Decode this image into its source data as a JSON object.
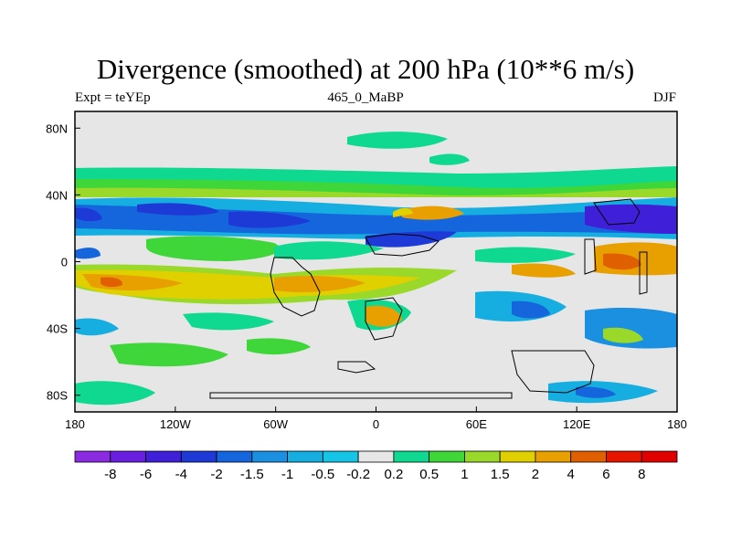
{
  "chart_data": {
    "type": "contour-map",
    "title": "Divergence (smoothed) at 200 hPa (10**6 m/s)",
    "left_label": "Expt = teYEp",
    "center_label": "465_0_MaBP",
    "right_label": "DJF",
    "x_ticks": [
      "180",
      "120W",
      "60W",
      "0",
      "60E",
      "120E",
      "180"
    ],
    "y_ticks": [
      "80N",
      "40N",
      "0",
      "40S",
      "80S"
    ],
    "xlim": [
      -180,
      180
    ],
    "ylim": [
      -90,
      90
    ],
    "colorbar_levels": [
      "-8",
      "-6",
      "-4",
      "-2",
      "-1.5",
      "-1",
      "-0.5",
      "-0.2",
      "0.2",
      "0.5",
      "1",
      "1.5",
      "2",
      "4",
      "6",
      "8"
    ],
    "colorbar_colors": [
      "#8a2be2",
      "#6a1fe0",
      "#3f1fd8",
      "#1d39d6",
      "#1566dd",
      "#1b8fe0",
      "#16aee0",
      "#14c5e6",
      "#e6e6e6",
      "#0fd891",
      "#3fd63a",
      "#9ad82a",
      "#e0d000",
      "#e8a000",
      "#e06000",
      "#e61500",
      "#e00000"
    ]
  }
}
